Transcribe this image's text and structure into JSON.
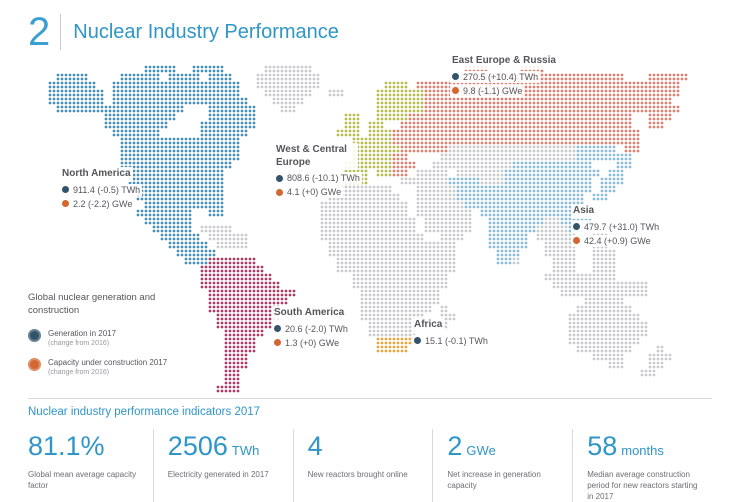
{
  "header": {
    "number": "2",
    "title": "Nuclear Industry Performance"
  },
  "map": {
    "palette": {
      "N": "#4690b8",
      "S": "#aa3d68",
      "W": "#b6bc4f",
      "E": "#dd8273",
      "A": "#8cbcd8",
      "F": "#eba63f",
      "G": "#c9cacb"
    },
    "regions": [
      {
        "name": "North America",
        "code": "N",
        "twh": "911.4 (-0.5) TWh",
        "gwe": "2.2 (-2.2) GWe"
      },
      {
        "name": "West & Central Europe",
        "code": "W",
        "twh": "808.6 (-10.1) TWh",
        "gwe": "4.1 (+0) GWe"
      },
      {
        "name": "East Europe & Russia",
        "code": "E",
        "twh": "270.5 (+10.4) TWh",
        "gwe": "9.8 (-1.1) GWe"
      },
      {
        "name": "Asia",
        "code": "A",
        "twh": "479.7 (+31.0) TWh",
        "gwe": "42.4 (+0.9) GWe"
      },
      {
        "name": "South America",
        "code": "S",
        "twh": "20.6 (-2.0) TWh",
        "gwe": "1.3 (+0) GWe"
      },
      {
        "name": "Africa",
        "code": "F",
        "twh": "15.1 (-0.1) TWh"
      }
    ],
    "grid": {
      "cols": 82,
      "rows": [
        [
          [
            13,
            16,
            "N"
          ],
          [
            19,
            22,
            "N"
          ],
          [
            28,
            33,
            "G"
          ],
          [
            53,
            55,
            "E"
          ],
          [
            60,
            62,
            "E"
          ]
        ],
        [
          [
            2,
            5,
            "N"
          ],
          [
            10,
            14,
            "N"
          ],
          [
            16,
            19,
            "N"
          ],
          [
            21,
            23,
            "N"
          ],
          [
            27,
            34,
            "G"
          ],
          [
            52,
            72,
            "E"
          ],
          [
            76,
            80,
            "E"
          ]
        ],
        [
          [
            1,
            6,
            "N"
          ],
          [
            9,
            24,
            "N"
          ],
          [
            27,
            34,
            "G"
          ],
          [
            43,
            45,
            "W"
          ],
          [
            47,
            79,
            "E"
          ]
        ],
        [
          [
            1,
            7,
            "N"
          ],
          [
            9,
            24,
            "N"
          ],
          [
            28,
            33,
            "G"
          ],
          [
            36,
            37,
            "G"
          ],
          [
            42,
            47,
            "W"
          ],
          [
            48,
            79,
            "E"
          ]
        ],
        [
          [
            1,
            7,
            "N"
          ],
          [
            9,
            25,
            "N"
          ],
          [
            29,
            32,
            "G"
          ],
          [
            42,
            47,
            "W"
          ],
          [
            48,
            78,
            "E"
          ]
        ],
        [
          [
            2,
            17,
            "N"
          ],
          [
            21,
            26,
            "N"
          ],
          [
            30,
            31,
            "G"
          ],
          [
            42,
            47,
            "W"
          ],
          [
            48,
            79,
            "E"
          ]
        ],
        [
          [
            8,
            16,
            "N"
          ],
          [
            21,
            26,
            "N"
          ],
          [
            38,
            39,
            "W"
          ],
          [
            42,
            45,
            "W"
          ],
          [
            46,
            73,
            "E"
          ],
          [
            76,
            78,
            "E"
          ]
        ],
        [
          [
            8,
            15,
            "N"
          ],
          [
            20,
            26,
            "N"
          ],
          [
            38,
            39,
            "W"
          ],
          [
            41,
            42,
            "W"
          ],
          [
            45,
            73,
            "E"
          ],
          [
            76,
            77,
            "E"
          ]
        ],
        [
          [
            9,
            14,
            "N"
          ],
          [
            20,
            25,
            "N"
          ],
          [
            37,
            39,
            "W"
          ],
          [
            41,
            43,
            "W"
          ],
          [
            44,
            74,
            "E"
          ]
        ],
        [
          [
            10,
            24,
            "N"
          ],
          [
            39,
            43,
            "W"
          ],
          [
            44,
            74,
            "E"
          ]
        ],
        [
          [
            10,
            24,
            "N"
          ],
          [
            39,
            44,
            "W"
          ],
          [
            45,
            50,
            "E"
          ],
          [
            51,
            66,
            "G"
          ],
          [
            67,
            71,
            "A"
          ],
          [
            73,
            74,
            "E"
          ]
        ],
        [
          [
            10,
            24,
            "N"
          ],
          [
            39,
            43,
            "W"
          ],
          [
            44,
            45,
            "E"
          ],
          [
            50,
            66,
            "G"
          ],
          [
            67,
            73,
            "A"
          ]
        ],
        [
          [
            10,
            23,
            "N"
          ],
          [
            38,
            43,
            "W"
          ],
          [
            44,
            46,
            "E"
          ],
          [
            49,
            58,
            "G"
          ],
          [
            59,
            68,
            "A"
          ],
          [
            72,
            73,
            "A"
          ]
        ],
        [
          [
            10,
            22,
            "N"
          ],
          [
            38,
            40,
            "W"
          ],
          [
            42,
            43,
            "W"
          ],
          [
            44,
            45,
            "E"
          ],
          [
            47,
            50,
            "G"
          ],
          [
            52,
            57,
            "G"
          ],
          [
            58,
            69,
            "A"
          ],
          [
            71,
            72,
            "A"
          ]
        ],
        [
          [
            11,
            22,
            "N"
          ],
          [
            38,
            40,
            "W"
          ],
          [
            45,
            50,
            "G"
          ],
          [
            51,
            54,
            "A"
          ],
          [
            55,
            57,
            "G"
          ],
          [
            58,
            68,
            "A"
          ],
          [
            70,
            72,
            "A"
          ]
        ],
        [
          [
            11,
            22,
            "N"
          ],
          [
            37,
            43,
            "G"
          ],
          [
            47,
            51,
            "G"
          ],
          [
            52,
            68,
            "A"
          ],
          [
            70,
            71,
            "A"
          ]
        ],
        [
          [
            12,
            22,
            "N"
          ],
          [
            36,
            44,
            "G"
          ],
          [
            47,
            51,
            "G"
          ],
          [
            52,
            67,
            "A"
          ],
          [
            69,
            70,
            "A"
          ]
        ],
        [
          [
            13,
            22,
            "N"
          ],
          [
            35,
            45,
            "G"
          ],
          [
            47,
            52,
            "G"
          ],
          [
            53,
            67,
            "A"
          ]
        ],
        [
          [
            12,
            18,
            "N"
          ],
          [
            21,
            22,
            "N"
          ],
          [
            35,
            45,
            "G"
          ],
          [
            47,
            53,
            "G"
          ],
          [
            55,
            66,
            "A"
          ]
        ],
        [
          [
            13,
            18,
            "N"
          ],
          [
            35,
            46,
            "G"
          ],
          [
            48,
            53,
            "G"
          ],
          [
            56,
            62,
            "A"
          ],
          [
            63,
            64,
            "G"
          ],
          [
            65,
            68,
            "A"
          ]
        ],
        [
          [
            14,
            18,
            "N"
          ],
          [
            20,
            23,
            "G"
          ],
          [
            35,
            46,
            "G"
          ],
          [
            48,
            53,
            "G"
          ],
          [
            56,
            61,
            "A"
          ],
          [
            62,
            65,
            "G"
          ],
          [
            66,
            68,
            "A"
          ]
        ],
        [
          [
            15,
            19,
            "N"
          ],
          [
            21,
            25,
            "G"
          ],
          [
            35,
            47,
            "G"
          ],
          [
            50,
            52,
            "G"
          ],
          [
            56,
            60,
            "A"
          ],
          [
            62,
            66,
            "G"
          ],
          [
            69,
            70,
            "G"
          ]
        ],
        [
          [
            16,
            20,
            "N"
          ],
          [
            22,
            25,
            "G"
          ],
          [
            36,
            51,
            "G"
          ],
          [
            56,
            60,
            "A"
          ],
          [
            63,
            66,
            "G"
          ],
          [
            69,
            70,
            "G"
          ]
        ],
        [
          [
            17,
            21,
            "N"
          ],
          [
            36,
            51,
            "G"
          ],
          [
            57,
            59,
            "A"
          ],
          [
            63,
            66,
            "G"
          ],
          [
            69,
            71,
            "G"
          ]
        ],
        [
          [
            18,
            20,
            "N"
          ],
          [
            21,
            26,
            "S"
          ],
          [
            37,
            51,
            "G"
          ],
          [
            57,
            58,
            "A"
          ],
          [
            59,
            59,
            "G"
          ],
          [
            64,
            66,
            "G"
          ],
          [
            69,
            71,
            "G"
          ]
        ],
        [
          [
            20,
            27,
            "S"
          ],
          [
            37,
            51,
            "G"
          ],
          [
            64,
            66,
            "G"
          ],
          [
            69,
            71,
            "G"
          ]
        ],
        [
          [
            20,
            28,
            "S"
          ],
          [
            39,
            50,
            "G"
          ],
          [
            63,
            71,
            "G"
          ]
        ],
        [
          [
            20,
            29,
            "S"
          ],
          [
            39,
            50,
            "G"
          ],
          [
            64,
            75,
            "G"
          ]
        ],
        [
          [
            21,
            31,
            "S"
          ],
          [
            40,
            49,
            "G"
          ],
          [
            65,
            75,
            "G"
          ]
        ],
        [
          [
            21,
            30,
            "S"
          ],
          [
            40,
            49,
            "G"
          ],
          [
            68,
            72,
            "G"
          ]
        ],
        [
          [
            21,
            29,
            "S"
          ],
          [
            40,
            48,
            "G"
          ],
          [
            50,
            50,
            "G"
          ],
          [
            67,
            73,
            "G"
          ]
        ],
        [
          [
            22,
            29,
            "S"
          ],
          [
            40,
            47,
            "G"
          ],
          [
            50,
            51,
            "G"
          ],
          [
            66,
            74,
            "G"
          ]
        ],
        [
          [
            22,
            28,
            "S"
          ],
          [
            41,
            46,
            "G"
          ],
          [
            50,
            50,
            "G"
          ],
          [
            66,
            75,
            "G"
          ]
        ],
        [
          [
            23,
            27,
            "S"
          ],
          [
            41,
            46,
            "G"
          ],
          [
            66,
            75,
            "G"
          ]
        ],
        [
          [
            23,
            26,
            "S"
          ],
          [
            42,
            46,
            "F"
          ],
          [
            66,
            74,
            "G"
          ]
        ],
        [
          [
            23,
            26,
            "S"
          ],
          [
            42,
            45,
            "F"
          ],
          [
            67,
            73,
            "G"
          ],
          [
            77,
            77,
            "G"
          ]
        ],
        [
          [
            23,
            25,
            "S"
          ],
          [
            69,
            72,
            "G"
          ],
          [
            76,
            78,
            "G"
          ]
        ],
        [
          [
            23,
            25,
            "S"
          ],
          [
            71,
            72,
            "G"
          ],
          [
            76,
            77,
            "G"
          ]
        ],
        [
          [
            23,
            24,
            "S"
          ],
          [
            75,
            76,
            "G"
          ]
        ],
        [
          [
            23,
            24,
            "S"
          ]
        ],
        [
          [
            22,
            24,
            "S"
          ]
        ]
      ]
    }
  },
  "legend": {
    "title": "Global nuclear generation and construction",
    "items": [
      {
        "label": "Generation in 2017",
        "sublabel": "(change from 2016)",
        "color": "#33536b"
      },
      {
        "label": "Capacity under construction 2017",
        "sublabel": "(change from 2016)",
        "color": "#d4662f"
      }
    ]
  },
  "indicators": {
    "heading": "Nuclear industry performance indicators 2017",
    "items": [
      {
        "value": "81.1%",
        "unit": "",
        "caption": "Global mean average capacity factor"
      },
      {
        "value": "2506",
        "unit": "TWh",
        "caption": "Electricity generated in 2017"
      },
      {
        "value": "4",
        "unit": "",
        "caption": "New reactors brought online"
      },
      {
        "value": "2",
        "unit": "GWe",
        "caption": "Net increase in generation capacity"
      },
      {
        "value": "58",
        "unit": "months",
        "caption": "Median average construction period for new reactors starting in 2017"
      }
    ]
  },
  "chart_data": {
    "type": "map",
    "title": "Nuclear Industry Performance",
    "regions": [
      {
        "name": "North America",
        "generation_2017_twh": 911.4,
        "generation_change_from_2016_twh": -0.5,
        "capacity_under_construction_2017_gwe": 2.2,
        "construction_change_from_2016_gwe": -2.2
      },
      {
        "name": "West & Central Europe",
        "generation_2017_twh": 808.6,
        "generation_change_from_2016_twh": -10.1,
        "capacity_under_construction_2017_gwe": 4.1,
        "construction_change_from_2016_gwe": 0
      },
      {
        "name": "East Europe & Russia",
        "generation_2017_twh": 270.5,
        "generation_change_from_2016_twh": 10.4,
        "capacity_under_construction_2017_gwe": 9.8,
        "construction_change_from_2016_gwe": -1.1
      },
      {
        "name": "Asia",
        "generation_2017_twh": 479.7,
        "generation_change_from_2016_twh": 31.0,
        "capacity_under_construction_2017_gwe": 42.4,
        "construction_change_from_2016_gwe": 0.9
      },
      {
        "name": "South America",
        "generation_2017_twh": 20.6,
        "generation_change_from_2016_twh": -2.0,
        "capacity_under_construction_2017_gwe": 1.3,
        "construction_change_from_2016_gwe": 0
      },
      {
        "name": "Africa",
        "generation_2017_twh": 15.1,
        "generation_change_from_2016_twh": -0.1
      }
    ],
    "indicators": [
      {
        "label": "Global mean average capacity factor",
        "value": 81.1,
        "unit": "%"
      },
      {
        "label": "Electricity generated in 2017",
        "value": 2506,
        "unit": "TWh"
      },
      {
        "label": "New reactors brought online",
        "value": 4,
        "unit": ""
      },
      {
        "label": "Net increase in generation capacity",
        "value": 2,
        "unit": "GWe"
      },
      {
        "label": "Median average construction period for new reactors starting in 2017",
        "value": 58,
        "unit": "months"
      }
    ]
  }
}
